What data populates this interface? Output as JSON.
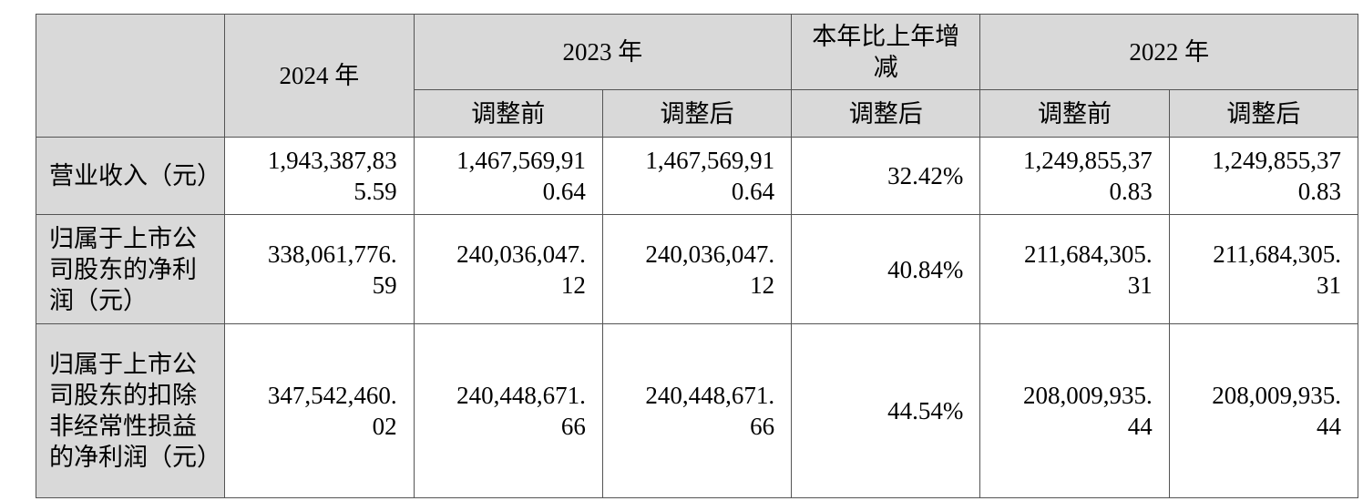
{
  "table": {
    "colors": {
      "header_background": "#d9d9d9",
      "label_background": "#d9d9d9",
      "cell_background": "#ffffff",
      "border": "#545454",
      "text": "#000000"
    },
    "header": {
      "corner": "",
      "col_2024": "2024 年",
      "col_2023": "2023 年",
      "col_change": "本年比上年增减",
      "col_2022": "2022 年",
      "sub_2023_before": "调整前",
      "sub_2023_after": "调整后",
      "sub_change_after": "调整后",
      "sub_2022_before": "调整前",
      "sub_2022_after": "调整后"
    },
    "rows": [
      {
        "label": "营业收入（元）",
        "y2024": "1,943,387,835.59",
        "y2023_before": "1,467,569,910.64",
        "y2023_after": "1,467,569,910.64",
        "change": "32.42%",
        "y2022_before": "1,249,855,370.83",
        "y2022_after": "1,249,855,370.83"
      },
      {
        "label": "归属于上市公司股东的净利润（元）",
        "y2024": "338,061,776.59",
        "y2023_before": "240,036,047.12",
        "y2023_after": "240,036,047.12",
        "change": "40.84%",
        "y2022_before": "211,684,305.31",
        "y2022_after": "211,684,305.31"
      },
      {
        "label": "归属于上市公司股东的扣除非经常性损益的净利润（元）",
        "y2024": "347,542,460.02",
        "y2023_before": "240,448,671.66",
        "y2023_after": "240,448,671.66",
        "change": "44.54%",
        "y2022_before": "208,009,935.44",
        "y2022_after": "208,009,935.44"
      }
    ]
  }
}
